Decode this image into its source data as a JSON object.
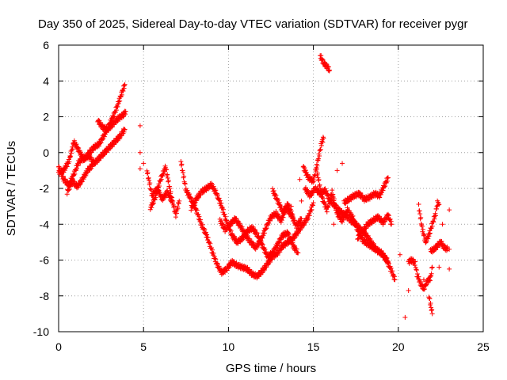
{
  "chart_data": {
    "type": "scatter",
    "title": "Day 350 of 2025, Sidereal Day-to-day VTEC variation (SDTVAR) for receiver pygr",
    "xlabel": "GPS time / hours",
    "ylabel": "SDTVAR / TECUs",
    "xlim": [
      0,
      25
    ],
    "ylim": [
      -10,
      6
    ],
    "x_ticks": [
      0,
      5,
      10,
      15,
      20,
      25
    ],
    "y_ticks": [
      -10,
      -8,
      -6,
      -4,
      -2,
      0,
      2,
      4,
      6
    ],
    "grid": true,
    "marker": "+",
    "marker_color": "#ff0000",
    "series": [
      {
        "name": "SDTVAR",
        "segments": [
          [
            [
              0.0,
              -0.8
            ],
            [
              0.3,
              -1.5
            ],
            [
              0.6,
              -1.8
            ],
            [
              0.9,
              -1.2
            ],
            [
              1.2,
              -0.5
            ],
            [
              1.5,
              -0.3
            ],
            [
              1.8,
              -0.2
            ],
            [
              2.1,
              -0.6
            ],
            [
              2.4,
              -0.3
            ],
            [
              2.7,
              0.0
            ],
            [
              3.0,
              0.3
            ],
            [
              3.3,
              0.6
            ],
            [
              3.6,
              0.9
            ],
            [
              3.9,
              1.3
            ]
          ],
          [
            [
              0.0,
              -1.1
            ],
            [
              0.3,
              -1.0
            ],
            [
              0.6,
              -0.5
            ],
            [
              0.9,
              0.6
            ],
            [
              1.2,
              0.1
            ],
            [
              1.5,
              -0.4
            ],
            [
              1.8,
              0.0
            ],
            [
              2.1,
              0.3
            ],
            [
              2.4,
              0.5
            ],
            [
              2.7,
              1.0
            ],
            [
              3.0,
              1.6
            ],
            [
              3.3,
              2.2
            ],
            [
              3.6,
              3.0
            ],
            [
              3.9,
              3.8
            ]
          ],
          [
            [
              2.3,
              1.8
            ],
            [
              2.6,
              1.4
            ],
            [
              2.9,
              1.3
            ],
            [
              3.2,
              1.6
            ],
            [
              3.5,
              1.9
            ],
            [
              3.8,
              2.1
            ],
            [
              3.95,
              2.3
            ]
          ],
          [
            [
              0.5,
              -2.2
            ],
            [
              0.8,
              -1.6
            ],
            [
              1.1,
              -1.9
            ],
            [
              1.4,
              -1.5
            ],
            [
              1.7,
              -1.0
            ],
            [
              2.0,
              -0.7
            ]
          ],
          [
            [
              5.2,
              -1.0
            ],
            [
              5.5,
              -2.4
            ],
            [
              5.8,
              -2.0
            ],
            [
              6.1,
              -2.6
            ],
            [
              6.4,
              -2.2
            ],
            [
              6.7,
              -2.8
            ]
          ],
          [
            [
              5.4,
              -3.1
            ],
            [
              5.7,
              -2.5
            ],
            [
              6.0,
              -1.5
            ],
            [
              6.3,
              -0.8
            ],
            [
              6.6,
              -2.3
            ],
            [
              6.9,
              -3.5
            ],
            [
              7.1,
              -2.7
            ]
          ],
          [
            [
              7.2,
              -0.5
            ],
            [
              7.5,
              -2.1
            ],
            [
              7.8,
              -2.6
            ],
            [
              8.1,
              -3.2
            ],
            [
              8.4,
              -4.0
            ],
            [
              8.7,
              -4.6
            ],
            [
              9.0,
              -5.4
            ],
            [
              9.3,
              -6.2
            ],
            [
              9.6,
              -6.7
            ],
            [
              9.9,
              -6.5
            ],
            [
              10.2,
              -6.1
            ],
            [
              10.5,
              -6.3
            ],
            [
              10.8,
              -6.4
            ],
            [
              11.1,
              -6.5
            ],
            [
              11.4,
              -6.8
            ],
            [
              11.7,
              -6.9
            ],
            [
              12.0,
              -6.6
            ],
            [
              12.3,
              -6.2
            ],
            [
              12.6,
              -5.8
            ],
            [
              12.9,
              -5.6
            ],
            [
              13.2,
              -5.2
            ],
            [
              13.5,
              -5.0
            ],
            [
              13.8,
              -4.8
            ],
            [
              14.1,
              -4.4
            ],
            [
              14.4,
              -4.0
            ],
            [
              14.7,
              -3.6
            ],
            [
              15.0,
              -2.8
            ]
          ],
          [
            [
              7.8,
              -3.1
            ],
            [
              8.1,
              -2.6
            ],
            [
              8.4,
              -2.2
            ],
            [
              8.7,
              -2.0
            ],
            [
              9.0,
              -1.8
            ],
            [
              9.3,
              -2.3
            ],
            [
              9.6,
              -3.0
            ],
            [
              9.9,
              -3.9
            ],
            [
              10.2,
              -4.6
            ],
            [
              10.5,
              -5.0
            ],
            [
              10.8,
              -4.8
            ],
            [
              11.1,
              -4.4
            ],
            [
              11.4,
              -4.2
            ],
            [
              11.7,
              -4.6
            ],
            [
              12.0,
              -5.2
            ],
            [
              12.3,
              -5.8
            ],
            [
              12.6,
              -5.6
            ],
            [
              12.9,
              -5.1
            ],
            [
              13.2,
              -4.6
            ],
            [
              13.5,
              -4.5
            ],
            [
              13.8,
              -5.2
            ],
            [
              14.1,
              -5.6
            ]
          ],
          [
            [
              9.5,
              -3.8
            ],
            [
              9.8,
              -4.3
            ],
            [
              10.1,
              -4.0
            ],
            [
              10.4,
              -3.7
            ],
            [
              10.7,
              -4.1
            ],
            [
              11.0,
              -4.6
            ],
            [
              11.3,
              -5.0
            ],
            [
              11.6,
              -5.3
            ],
            [
              11.9,
              -4.9
            ],
            [
              12.2,
              -4.2
            ],
            [
              12.5,
              -3.6
            ],
            [
              12.8,
              -3.4
            ],
            [
              13.1,
              -3.8
            ],
            [
              13.4,
              -3.1
            ],
            [
              13.7,
              -3.5
            ],
            [
              14.0,
              -4.1
            ],
            [
              14.3,
              -3.7
            ]
          ],
          [
            [
              12.6,
              -2.1
            ],
            [
              12.9,
              -2.7
            ],
            [
              13.2,
              -3.3
            ],
            [
              13.5,
              -2.9
            ],
            [
              13.8,
              -3.6
            ]
          ],
          [
            [
              14.4,
              -0.8
            ],
            [
              14.7,
              -1.4
            ],
            [
              15.0,
              -1.6
            ],
            [
              15.3,
              -0.3
            ],
            [
              15.5,
              0.6
            ],
            [
              15.6,
              0.8
            ]
          ],
          [
            [
              14.5,
              -2.0
            ],
            [
              14.8,
              -2.4
            ],
            [
              15.1,
              -2.0
            ],
            [
              15.4,
              -2.3
            ],
            [
              15.7,
              -2.1
            ],
            [
              16.0,
              -2.7
            ],
            [
              16.3,
              -3.0
            ],
            [
              16.6,
              -3.3
            ],
            [
              16.9,
              -3.5
            ],
            [
              17.2,
              -3.8
            ],
            [
              17.5,
              -4.0
            ],
            [
              17.8,
              -4.3
            ],
            [
              18.1,
              -4.6
            ],
            [
              18.4,
              -5.0
            ],
            [
              18.7,
              -5.4
            ],
            [
              19.0,
              -5.6
            ],
            [
              19.3,
              -6.0
            ],
            [
              19.6,
              -6.6
            ],
            [
              19.8,
              -7.1
            ]
          ],
          [
            [
              15.2,
              -1.0
            ],
            [
              15.5,
              -2.5
            ],
            [
              15.8,
              -3.2
            ],
            [
              16.1,
              -2.2
            ],
            [
              16.4,
              -3.4
            ],
            [
              16.7,
              -3.8
            ],
            [
              17.0,
              -3.2
            ],
            [
              17.3,
              -3.6
            ],
            [
              17.6,
              -4.3
            ],
            [
              17.9,
              -4.9
            ],
            [
              18.2,
              -5.1
            ],
            [
              18.5,
              -5.3
            ],
            [
              18.8,
              -5.5
            ],
            [
              19.1,
              -5.7
            ],
            [
              19.4,
              -6.1
            ]
          ],
          [
            [
              16.8,
              -2.8
            ],
            [
              17.1,
              -2.6
            ],
            [
              17.4,
              -2.4
            ],
            [
              17.7,
              -2.3
            ],
            [
              18.0,
              -2.6
            ],
            [
              18.3,
              -2.5
            ],
            [
              18.6,
              -2.3
            ],
            [
              18.9,
              -2.4
            ],
            [
              19.2,
              -1.8
            ],
            [
              19.4,
              -1.4
            ]
          ],
          [
            [
              17.6,
              -4.8
            ],
            [
              17.9,
              -4.4
            ],
            [
              18.2,
              -4.0
            ],
            [
              18.5,
              -3.8
            ],
            [
              18.8,
              -3.6
            ],
            [
              19.1,
              -3.9
            ],
            [
              19.4,
              -3.5
            ],
            [
              19.6,
              -4.0
            ]
          ],
          [
            [
              15.4,
              5.4
            ],
            [
              15.6,
              5.0
            ],
            [
              15.8,
              4.8
            ],
            [
              15.95,
              4.6
            ]
          ],
          [
            [
              20.6,
              -6.1
            ],
            [
              20.8,
              -6.0
            ],
            [
              21.0,
              -6.2
            ],
            [
              21.1,
              -6.8
            ],
            [
              21.3,
              -7.3
            ],
            [
              21.5,
              -7.6
            ],
            [
              21.7,
              -7.2
            ],
            [
              21.9,
              -7.0
            ],
            [
              22.0,
              -6.4
            ]
          ],
          [
            [
              21.2,
              -3.0
            ],
            [
              21.4,
              -4.2
            ],
            [
              21.6,
              -5.0
            ],
            [
              21.8,
              -4.6
            ],
            [
              22.0,
              -4.0
            ],
            [
              22.2,
              -3.4
            ],
            [
              22.3,
              -2.8
            ],
            [
              22.4,
              -2.9
            ]
          ],
          [
            [
              21.9,
              -5.5
            ],
            [
              22.1,
              -5.4
            ],
            [
              22.3,
              -5.2
            ],
            [
              22.5,
              -5.0
            ],
            [
              22.7,
              -5.3
            ],
            [
              22.9,
              -5.4
            ]
          ],
          [
            [
              21.8,
              -8.0
            ],
            [
              21.9,
              -8.5
            ],
            [
              22.0,
              -9.0
            ]
          ]
        ],
        "isolated_points": [
          [
            4.8,
            1.5
          ],
          [
            4.8,
            0.0
          ],
          [
            4.8,
            -0.9
          ],
          [
            5.0,
            -0.6
          ],
          [
            13.7,
            -3.0
          ],
          [
            14.3,
            -2.7
          ],
          [
            14.2,
            -1.5
          ],
          [
            16.2,
            -4.0
          ],
          [
            16.4,
            -1.0
          ],
          [
            16.7,
            -0.6
          ],
          [
            20.1,
            -5.7
          ],
          [
            20.4,
            -9.2
          ],
          [
            20.6,
            -7.7
          ],
          [
            21.5,
            -7.1
          ],
          [
            22.4,
            -6.4
          ],
          [
            22.6,
            -4.0
          ],
          [
            23.0,
            -3.2
          ],
          [
            23.0,
            -5.4
          ],
          [
            23.0,
            -6.5
          ]
        ]
      }
    ]
  }
}
